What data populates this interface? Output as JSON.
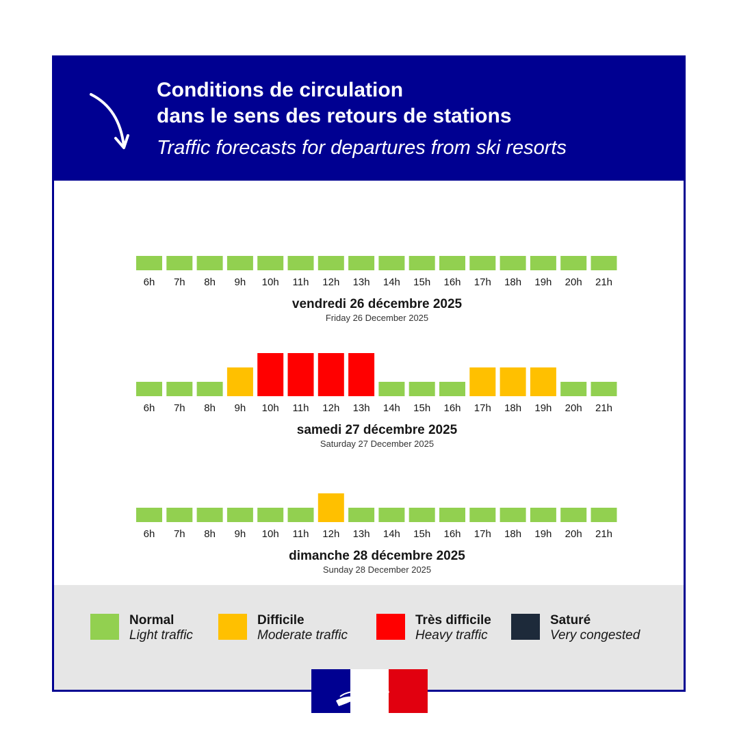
{
  "header": {
    "title_line1": "Conditions de circulation",
    "title_line2": "dans le sens des retours de stations",
    "subtitle": "Traffic forecasts for departures from ski resorts"
  },
  "colors": {
    "brand_blue": "#000091",
    "normal": "#92d050",
    "difficile": "#ffc000",
    "tres_difficile": "#ff0000",
    "sature": "#1d2a3a"
  },
  "chart_data": {
    "type": "heatmap",
    "hours": [
      "6h",
      "7h",
      "8h",
      "9h",
      "10h",
      "11h",
      "12h",
      "13h",
      "14h",
      "15h",
      "16h",
      "17h",
      "18h",
      "19h",
      "20h",
      "21h"
    ],
    "levels": [
      "normal",
      "difficile",
      "tres_difficile",
      "sature"
    ],
    "days": [
      {
        "label_fr": "vendredi 26 décembre 2025",
        "label_en": "Friday 26 December 2025",
        "values": [
          "normal",
          "normal",
          "normal",
          "normal",
          "normal",
          "normal",
          "normal",
          "normal",
          "normal",
          "normal",
          "normal",
          "normal",
          "normal",
          "normal",
          "normal",
          "normal"
        ]
      },
      {
        "label_fr": "samedi 27 décembre 2025",
        "label_en": "Saturday 27 December 2025",
        "values": [
          "normal",
          "normal",
          "normal",
          "difficile",
          "tres_difficile",
          "tres_difficile",
          "tres_difficile",
          "tres_difficile",
          "normal",
          "normal",
          "normal",
          "difficile",
          "difficile",
          "difficile",
          "normal",
          "normal"
        ]
      },
      {
        "label_fr": "dimanche 28 décembre 2025",
        "label_en": "Sunday 28 December 2025",
        "values": [
          "normal",
          "normal",
          "normal",
          "normal",
          "normal",
          "normal",
          "difficile",
          "normal",
          "normal",
          "normal",
          "normal",
          "normal",
          "normal",
          "normal",
          "normal",
          "normal"
        ]
      }
    ]
  },
  "legend": [
    {
      "key": "normal",
      "label_fr": "Normal",
      "label_en": "Light traffic"
    },
    {
      "key": "difficile",
      "label_fr": "Difficile",
      "label_en": "Moderate traffic"
    },
    {
      "key": "tres_difficile",
      "label_fr": "Très difficile",
      "label_en": "Heavy traffic"
    },
    {
      "key": "sature",
      "label_fr": "Saturé",
      "label_en": "Very congested"
    }
  ],
  "logo": {
    "icon": "marianne-logo-icon"
  }
}
